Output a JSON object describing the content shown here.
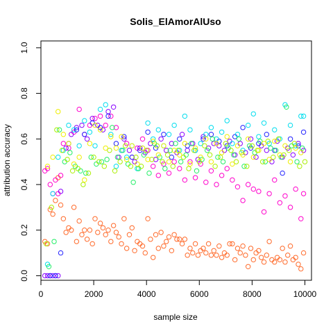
{
  "chart_data": {
    "type": "scatter",
    "title": "Solis_ElAmorAlUso",
    "xlabel": "sample size",
    "ylabel": "attribution accuracy",
    "xlim": [
      0,
      10250
    ],
    "ylim": [
      -0.02,
      1.03
    ],
    "x_ticks": [
      0,
      2000,
      4000,
      6000,
      8000,
      10000
    ],
    "y_ticks": [
      0.0,
      0.2,
      0.4,
      0.6,
      0.8,
      1.0
    ],
    "x_tick_labels": [
      "0",
      "2000",
      "4000",
      "6000",
      "8000",
      "10000"
    ],
    "y_tick_labels": [
      "0.0",
      "0.2",
      "0.4",
      "0.6",
      "0.8",
      "1.0"
    ],
    "grid": false,
    "marker": "open-circle",
    "series": [
      {
        "color": "#FF6A2A",
        "x": [
          150,
          250,
          350,
          450,
          550,
          650,
          750,
          850,
          950,
          1050,
          1150,
          1250,
          1350,
          1450,
          1550,
          1650,
          1750,
          1850,
          1950,
          2050,
          2150,
          2250,
          2350,
          2450,
          2550,
          2650,
          2750,
          2850,
          2950,
          3050,
          3150,
          3250,
          3350,
          3450,
          3550,
          3650,
          3750,
          3850,
          3950,
          4050,
          4150,
          4250,
          4350,
          4450,
          4550,
          4650,
          4750,
          4850,
          4950,
          5050,
          5150,
          5250,
          5350,
          5450,
          5550,
          5650,
          5750,
          5850,
          5950,
          6050,
          6150,
          6250,
          6350,
          6450,
          6550,
          6650,
          6750,
          6850,
          6950,
          7050,
          7150,
          7250,
          7350,
          7450,
          7550,
          7650,
          7750,
          7850,
          7950,
          8050,
          8150,
          8250,
          8350,
          8450,
          8550,
          8650,
          8750,
          8850,
          8950,
          9050,
          9150,
          9250,
          9350,
          9450,
          9550,
          9650,
          9750,
          9850,
          9950
        ],
        "y": [
          0.15,
          0.14,
          0.29,
          0.27,
          0.33,
          0.43,
          0.31,
          0.25,
          0.19,
          0.21,
          0.2,
          0.3,
          0.15,
          0.24,
          0.18,
          0.2,
          0.16,
          0.2,
          0.14,
          0.25,
          0.19,
          0.23,
          0.21,
          0.18,
          0.2,
          0.15,
          0.22,
          0.19,
          0.17,
          0.14,
          0.25,
          0.12,
          0.18,
          0.21,
          0.11,
          0.15,
          0.14,
          0.13,
          0.1,
          0.25,
          0.16,
          0.08,
          0.18,
          0.12,
          0.19,
          0.13,
          0.15,
          0.17,
          0.11,
          0.18,
          0.16,
          0.16,
          0.14,
          0.16,
          0.09,
          0.12,
          0.1,
          0.14,
          0.09,
          0.11,
          0.12,
          0.1,
          0.14,
          0.09,
          0.11,
          0.09,
          0.13,
          0.08,
          0.1,
          0.09,
          0.14,
          0.14,
          0.07,
          0.12,
          0.1,
          0.13,
          0.09,
          0.04,
          0.12,
          0.07,
          0.1,
          0.11,
          0.08,
          0.06,
          0.09,
          0.15,
          0.07,
          0.06,
          0.08,
          0.07,
          0.12,
          0.06,
          0.09,
          0.13,
          0.07,
          0.08,
          0.05,
          0.03,
          0.1
        ]
      },
      {
        "color": "#FF00CC",
        "x": [
          150,
          250,
          350,
          450,
          550,
          650,
          750,
          850,
          1050,
          1250,
          1450,
          1650,
          1850,
          2050,
          2250,
          2450,
          2650,
          2850,
          3050,
          3250,
          3450,
          3650,
          3850,
          4050,
          4250,
          4450,
          4650,
          4850,
          5050,
          5250,
          5450,
          5650,
          5850,
          6050,
          6250,
          6450,
          6650,
          6850,
          7050,
          7250,
          7450,
          7650,
          7850,
          8050,
          8250,
          8450,
          8650,
          8850,
          9050,
          9250,
          9450,
          9650,
          9850,
          9950
        ],
        "y": [
          0.46,
          0.47,
          0.4,
          0.36,
          0.42,
          0.36,
          0.44,
          0.58,
          0.56,
          0.63,
          0.73,
          0.62,
          0.66,
          0.69,
          0.7,
          0.66,
          0.7,
          0.65,
          0.55,
          0.58,
          0.52,
          0.56,
          0.6,
          0.55,
          0.48,
          0.44,
          0.49,
          0.45,
          0.5,
          0.47,
          0.42,
          0.5,
          0.43,
          0.49,
          0.41,
          0.46,
          0.4,
          0.44,
          0.47,
          0.42,
          0.39,
          0.33,
          0.4,
          0.38,
          0.37,
          0.28,
          0.36,
          0.42,
          0.32,
          0.35,
          0.3,
          0.38,
          0.25,
          0.36
        ]
      },
      {
        "color": "#8800FF",
        "x": [
          150,
          250,
          350,
          450,
          550,
          650,
          750,
          950,
          1150,
          1350,
          1550,
          1750,
          1950,
          2150,
          2350,
          2550,
          2750,
          2950,
          3150,
          3350,
          3550,
          3750,
          3950,
          4150,
          4350,
          4550,
          4750,
          4950,
          5150,
          5350,
          5550,
          5750,
          5950,
          6150,
          6350,
          6550,
          6750,
          6950,
          7150,
          7350,
          7550,
          7750,
          7950,
          8150,
          8350,
          8550,
          8750,
          8950,
          9150,
          9350,
          9550,
          9750,
          9950
        ],
        "y": [
          0.0,
          0.0,
          0.0,
          0.0,
          0.0,
          0.0,
          0.37,
          0.56,
          0.62,
          0.65,
          0.66,
          0.6,
          0.69,
          0.66,
          0.64,
          0.72,
          0.74,
          0.52,
          0.6,
          0.55,
          0.5,
          0.56,
          0.54,
          0.58,
          0.51,
          0.6,
          0.55,
          0.58,
          0.54,
          0.62,
          0.55,
          0.58,
          0.51,
          0.61,
          0.56,
          0.58,
          0.57,
          0.55,
          0.59,
          0.53,
          0.58,
          0.54,
          0.6,
          0.52,
          0.57,
          0.55,
          0.5,
          0.59,
          0.52,
          0.56,
          0.53,
          0.58,
          0.55
        ]
      },
      {
        "color": "#2222FF",
        "x": [
          350,
          550,
          750,
          1050,
          1350,
          1650,
          1950,
          2250,
          2550,
          2850,
          3150,
          3450,
          3750,
          4050,
          4350,
          4650,
          4950,
          5250,
          5550,
          5850,
          6150,
          6450,
          6750,
          7050,
          7350,
          7650,
          7950,
          8250,
          8550,
          8850,
          9150,
          9450,
          9750,
          9950
        ],
        "y": [
          0.0,
          0.0,
          0.1,
          0.58,
          0.64,
          0.62,
          0.67,
          0.65,
          0.7,
          0.58,
          0.61,
          0.52,
          0.55,
          0.63,
          0.56,
          0.62,
          0.52,
          0.6,
          0.57,
          0.55,
          0.6,
          0.62,
          0.59,
          0.57,
          0.61,
          0.65,
          0.56,
          0.58,
          0.62,
          0.55,
          0.45,
          0.6,
          0.57,
          0.63
        ]
      },
      {
        "color": "#00DDEE",
        "x": [
          250,
          450,
          650,
          850,
          1050,
          1250,
          1450,
          1650,
          1850,
          2050,
          2250,
          2450,
          2650,
          2850,
          3050,
          3250,
          3450,
          3650,
          3850,
          4050,
          4250,
          4450,
          4650,
          4850,
          5050,
          5250,
          5450,
          5650,
          5850,
          6050,
          6250,
          6450,
          6650,
          6850,
          7050,
          7250,
          7450,
          7650,
          7850,
          8050,
          8250,
          8450,
          8650,
          8850,
          9050,
          9250,
          9450,
          9650,
          9850,
          9950
        ],
        "y": [
          0.05,
          0.36,
          0.52,
          0.55,
          0.66,
          0.64,
          0.57,
          0.68,
          0.63,
          0.57,
          0.73,
          0.75,
          0.62,
          0.48,
          0.55,
          0.52,
          0.57,
          0.47,
          0.56,
          0.67,
          0.6,
          0.64,
          0.57,
          0.62,
          0.66,
          0.55,
          0.7,
          0.64,
          0.55,
          0.58,
          0.62,
          0.65,
          0.6,
          0.63,
          0.68,
          0.58,
          0.62,
          0.55,
          0.66,
          0.71,
          0.61,
          0.67,
          0.58,
          0.64,
          0.6,
          0.75,
          0.66,
          0.57,
          0.7,
          0.7
        ]
      },
      {
        "color": "#22EE66",
        "x": [
          300,
          500,
          700,
          900,
          1100,
          1300,
          1500,
          1700,
          1900,
          2100,
          2300,
          2500,
          2700,
          2900,
          3100,
          3300,
          3500,
          3700,
          3900,
          4100,
          4300,
          4500,
          4700,
          4900,
          5100,
          5300,
          5500,
          5700,
          5900,
          6100,
          6300,
          6500,
          6700,
          6900,
          7100,
          7300,
          7500,
          7700,
          7900,
          8100,
          8300,
          8500,
          8700,
          8900,
          9100,
          9300,
          9500,
          9700,
          9900
        ],
        "y": [
          0.04,
          0.15,
          0.64,
          0.5,
          0.54,
          0.48,
          0.46,
          0.45,
          0.52,
          0.49,
          0.5,
          0.51,
          0.65,
          0.52,
          0.55,
          0.49,
          0.41,
          0.47,
          0.53,
          0.45,
          0.58,
          0.52,
          0.47,
          0.55,
          0.58,
          0.5,
          0.53,
          0.58,
          0.46,
          0.51,
          0.55,
          0.6,
          0.52,
          0.5,
          0.56,
          0.53,
          0.6,
          0.48,
          0.57,
          0.54,
          0.59,
          0.5,
          0.56,
          0.55,
          0.52,
          0.74,
          0.57,
          0.5,
          0.56
        ]
      },
      {
        "color": "#AAEE00",
        "x": [
          200,
          400,
          600,
          800,
          1000,
          1200,
          1400,
          1600,
          1800,
          2000,
          2200,
          2400,
          2600,
          2800,
          3000,
          3200,
          3400,
          3600,
          3800,
          4000,
          4200,
          4400,
          4600,
          4800,
          5000,
          5200,
          5400,
          5600,
          5800,
          6000,
          6200,
          6400,
          6600,
          6800,
          7000,
          7200,
          7400,
          7600,
          7800,
          8000,
          8200,
          8400,
          8600,
          8800,
          9000,
          9200,
          9400,
          9600,
          9800,
          10000
        ],
        "y": [
          0.14,
          0.3,
          0.64,
          0.55,
          0.51,
          0.46,
          0.47,
          0.4,
          0.45,
          0.52,
          0.5,
          0.48,
          0.55,
          0.46,
          0.5,
          0.57,
          0.48,
          0.52,
          0.48,
          0.55,
          0.51,
          0.57,
          0.5,
          0.53,
          0.48,
          0.55,
          0.52,
          0.47,
          0.55,
          0.5,
          0.57,
          0.53,
          0.48,
          0.52,
          0.58,
          0.55,
          0.5,
          0.54,
          0.48,
          0.57,
          0.55,
          0.5,
          0.59,
          0.52,
          0.6,
          0.53,
          0.55,
          0.58,
          0.48,
          0.5
        ]
      },
      {
        "color": "#EEEE00",
        "x": [
          250,
          450,
          650,
          850,
          1050,
          1250,
          1450,
          1650,
          1850,
          2050,
          2250,
          2450,
          2650,
          2850,
          3050,
          3250,
          3450,
          3650,
          3850,
          4050,
          4250,
          4450,
          4650,
          4850,
          5050,
          5250,
          5450,
          5650,
          5850,
          6050,
          6250,
          6450,
          6650,
          6850,
          7050,
          7250,
          7450,
          7650,
          7850,
          8050,
          8250,
          8450,
          8650,
          8850,
          9050,
          9250,
          9450,
          9650,
          9850
        ],
        "y": [
          0.48,
          0.52,
          0.72,
          0.62,
          0.58,
          0.49,
          0.52,
          0.42,
          0.58,
          0.66,
          0.64,
          0.56,
          0.61,
          0.56,
          0.61,
          0.51,
          0.57,
          0.49,
          0.56,
          0.51,
          0.59,
          0.53,
          0.57,
          0.5,
          0.55,
          0.53,
          0.58,
          0.49,
          0.56,
          0.52,
          0.6,
          0.5,
          0.58,
          0.54,
          0.61,
          0.49,
          0.57,
          0.53,
          0.6,
          0.52,
          0.55,
          0.58,
          0.51,
          0.59,
          0.53,
          0.57,
          0.5,
          0.56,
          0.54
        ]
      }
    ]
  }
}
